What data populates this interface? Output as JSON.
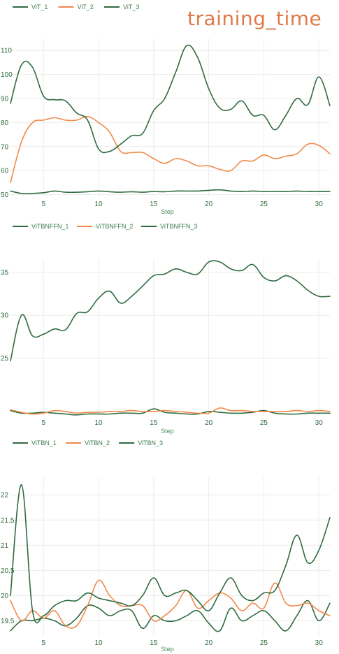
{
  "page_title": "training_time",
  "colors": {
    "green": "#2f6b3f",
    "orange": "#f08a4b"
  },
  "chart_data": [
    {
      "type": "line",
      "xlabel": "Step",
      "xlim": [
        2,
        31
      ],
      "ylim": [
        49,
        115
      ],
      "xticks": [
        5,
        10,
        15,
        20,
        25,
        30
      ],
      "yticks": [
        50,
        60,
        70,
        80,
        90,
        100,
        110
      ],
      "series": [
        {
          "name": "ViT_1",
          "color": "#2f6b3f",
          "x": [
            2,
            3,
            4,
            5,
            6,
            7,
            8,
            9,
            10,
            11,
            12,
            13,
            14,
            15,
            16,
            17,
            18,
            19,
            20,
            21,
            22,
            23,
            24,
            25,
            26,
            27,
            28,
            29,
            30,
            31
          ],
          "y": [
            51.5,
            50.5,
            50.5,
            50.8,
            51.5,
            51,
            51,
            51.2,
            51.5,
            51.2,
            51,
            51.2,
            51,
            51.3,
            51.2,
            51.5,
            51.5,
            51.5,
            51.8,
            52,
            51.5,
            51.3,
            51.5,
            51.3,
            51.3,
            51.3,
            51.5,
            51.3,
            51.3,
            51.3
          ]
        },
        {
          "name": "ViT_2",
          "color": "#f08a4b",
          "x": [
            2,
            3,
            4,
            5,
            6,
            7,
            8,
            9,
            10,
            11,
            12,
            13,
            14,
            15,
            16,
            17,
            18,
            19,
            20,
            21,
            22,
            23,
            24,
            25,
            26,
            27,
            28,
            29,
            30,
            31
          ],
          "y": [
            55,
            72,
            80,
            81,
            82,
            81,
            81,
            82.5,
            80,
            76,
            68,
            67.5,
            67.5,
            65,
            63,
            65,
            64,
            62,
            62,
            60.5,
            60,
            64,
            64,
            66.5,
            65,
            66,
            67,
            71,
            70.5,
            67
          ]
        },
        {
          "name": "ViT_3",
          "color": "#2f6b3f",
          "x": [
            2,
            3,
            4,
            5,
            6,
            7,
            8,
            9,
            10,
            11,
            12,
            13,
            14,
            15,
            16,
            17,
            18,
            19,
            20,
            21,
            22,
            23,
            24,
            25,
            26,
            27,
            28,
            29,
            30,
            31
          ],
          "y": [
            88,
            104,
            103,
            91,
            89.5,
            89,
            84,
            81,
            69,
            68,
            71,
            74.5,
            75.5,
            85,
            90,
            101,
            112,
            107,
            94,
            86,
            85.5,
            89,
            83,
            83,
            77,
            83,
            90,
            87.5,
            99,
            87
          ]
        }
      ]
    },
    {
      "type": "line",
      "xlabel": "Step",
      "xlim": [
        2,
        31
      ],
      "ylim": [
        18.3,
        36.6
      ],
      "xticks": [
        5,
        10,
        15,
        20,
        25,
        30
      ],
      "yticks": [
        25,
        30,
        35
      ],
      "series": [
        {
          "name": "ViTBNFFN_1",
          "color": "#2f6b3f",
          "x": [
            2,
            3,
            4,
            5,
            6,
            7,
            8,
            9,
            10,
            11,
            12,
            13,
            14,
            15,
            16,
            17,
            18,
            19,
            20,
            21,
            22,
            23,
            24,
            25,
            26,
            27,
            28,
            29,
            30,
            31
          ],
          "y": [
            18.9,
            18.6,
            18.6,
            18.7,
            18.6,
            18.5,
            18.4,
            18.5,
            18.5,
            18.5,
            18.6,
            18.6,
            18.6,
            19.1,
            18.7,
            18.6,
            18.5,
            18.5,
            18.8,
            18.7,
            18.6,
            18.6,
            18.7,
            18.9,
            18.6,
            18.5,
            18.5,
            18.6,
            18.6,
            18.6
          ]
        },
        {
          "name": "ViTBNFFN_2",
          "color": "#f08a4b",
          "x": [
            2,
            3,
            4,
            5,
            6,
            7,
            8,
            9,
            10,
            11,
            12,
            13,
            14,
            15,
            16,
            17,
            18,
            19,
            20,
            21,
            22,
            23,
            24,
            25,
            26,
            27,
            28,
            29,
            30,
            31
          ],
          "y": [
            19,
            18.7,
            18.5,
            18.6,
            18.9,
            18.8,
            18.6,
            18.7,
            18.7,
            18.8,
            18.8,
            18.9,
            18.8,
            18.8,
            18.9,
            18.8,
            18.7,
            18.6,
            18.6,
            19.2,
            18.9,
            18.9,
            18.8,
            18.8,
            18.8,
            18.8,
            18.9,
            18.8,
            18.9,
            18.8
          ]
        },
        {
          "name": "ViTBNFFN_3",
          "color": "#2f6b3f",
          "x": [
            2,
            3,
            4,
            5,
            6,
            7,
            8,
            9,
            10,
            11,
            12,
            13,
            14,
            15,
            16,
            17,
            18,
            19,
            20,
            21,
            22,
            23,
            24,
            25,
            26,
            27,
            28,
            29,
            30,
            31
          ],
          "y": [
            24.7,
            30,
            27.6,
            27.8,
            28.4,
            28.3,
            30.2,
            30.4,
            32,
            32.8,
            31.4,
            32.2,
            33.4,
            34.6,
            34.8,
            35.4,
            35,
            34.8,
            36.2,
            36.2,
            35.4,
            35.2,
            35.9,
            34.4,
            34,
            34.6,
            34,
            32.9,
            32.2,
            32.2
          ]
        }
      ]
    },
    {
      "type": "line",
      "xlabel": "Step",
      "xlim": [
        2,
        31
      ],
      "ylim": [
        19.2,
        22.35
      ],
      "xticks": [
        5,
        10,
        15,
        20,
        25,
        30
      ],
      "yticks": [
        19.5,
        20,
        20.5,
        21,
        21.5,
        22
      ],
      "ytick_labels": [
        "19.5",
        "20",
        "20.5",
        "21",
        "21.5",
        "22"
      ],
      "series": [
        {
          "name": "ViTBN_1",
          "color": "#2f6b3f",
          "x": [
            2,
            3,
            4,
            5,
            6,
            7,
            8,
            9,
            10,
            11,
            12,
            13,
            14,
            15,
            16,
            17,
            18,
            19,
            20,
            21,
            22,
            23,
            24,
            25,
            26,
            27,
            28,
            29,
            30,
            31
          ],
          "y": [
            19.3,
            19.5,
            19.5,
            19.55,
            19.5,
            19.4,
            19.55,
            19.8,
            19.75,
            19.6,
            19.7,
            19.7,
            19.35,
            19.6,
            19.5,
            19.5,
            19.6,
            19.7,
            19.45,
            19.3,
            19.75,
            19.5,
            19.6,
            19.7,
            19.5,
            19.3,
            19.6,
            19.9,
            19.5,
            19.85
          ]
        },
        {
          "name": "ViTBN_2",
          "color": "#f08a4b",
          "x": [
            2,
            3,
            4,
            5,
            6,
            7,
            8,
            9,
            10,
            11,
            12,
            13,
            14,
            15,
            16,
            17,
            18,
            19,
            20,
            21,
            22,
            23,
            24,
            25,
            26,
            27,
            28,
            29,
            30,
            31
          ],
          "y": [
            19.9,
            19.5,
            19.7,
            19.55,
            19.7,
            19.4,
            19.4,
            19.8,
            20.3,
            20.0,
            19.8,
            19.8,
            19.8,
            19.5,
            19.6,
            19.8,
            20.1,
            19.75,
            19.9,
            20.05,
            19.95,
            19.7,
            19.85,
            19.75,
            20.25,
            19.85,
            19.8,
            19.85,
            19.7,
            19.6
          ]
        },
        {
          "name": "ViTBN_3",
          "color": "#2f6b3f",
          "x": [
            2,
            3,
            4,
            5,
            6,
            7,
            8,
            9,
            10,
            11,
            12,
            13,
            14,
            15,
            16,
            17,
            18,
            19,
            20,
            21,
            22,
            23,
            24,
            25,
            26,
            27,
            28,
            29,
            30,
            31
          ],
          "y": [
            20,
            22.2,
            19.7,
            19.6,
            19.8,
            19.9,
            19.9,
            20.05,
            19.95,
            19.9,
            19.85,
            19.8,
            20.0,
            20.35,
            20.0,
            20.05,
            20.1,
            19.9,
            19.7,
            20.05,
            20.35,
            20.0,
            19.9,
            20.05,
            20.1,
            20.6,
            21.2,
            20.65,
            20.9,
            21.55
          ]
        }
      ]
    }
  ]
}
